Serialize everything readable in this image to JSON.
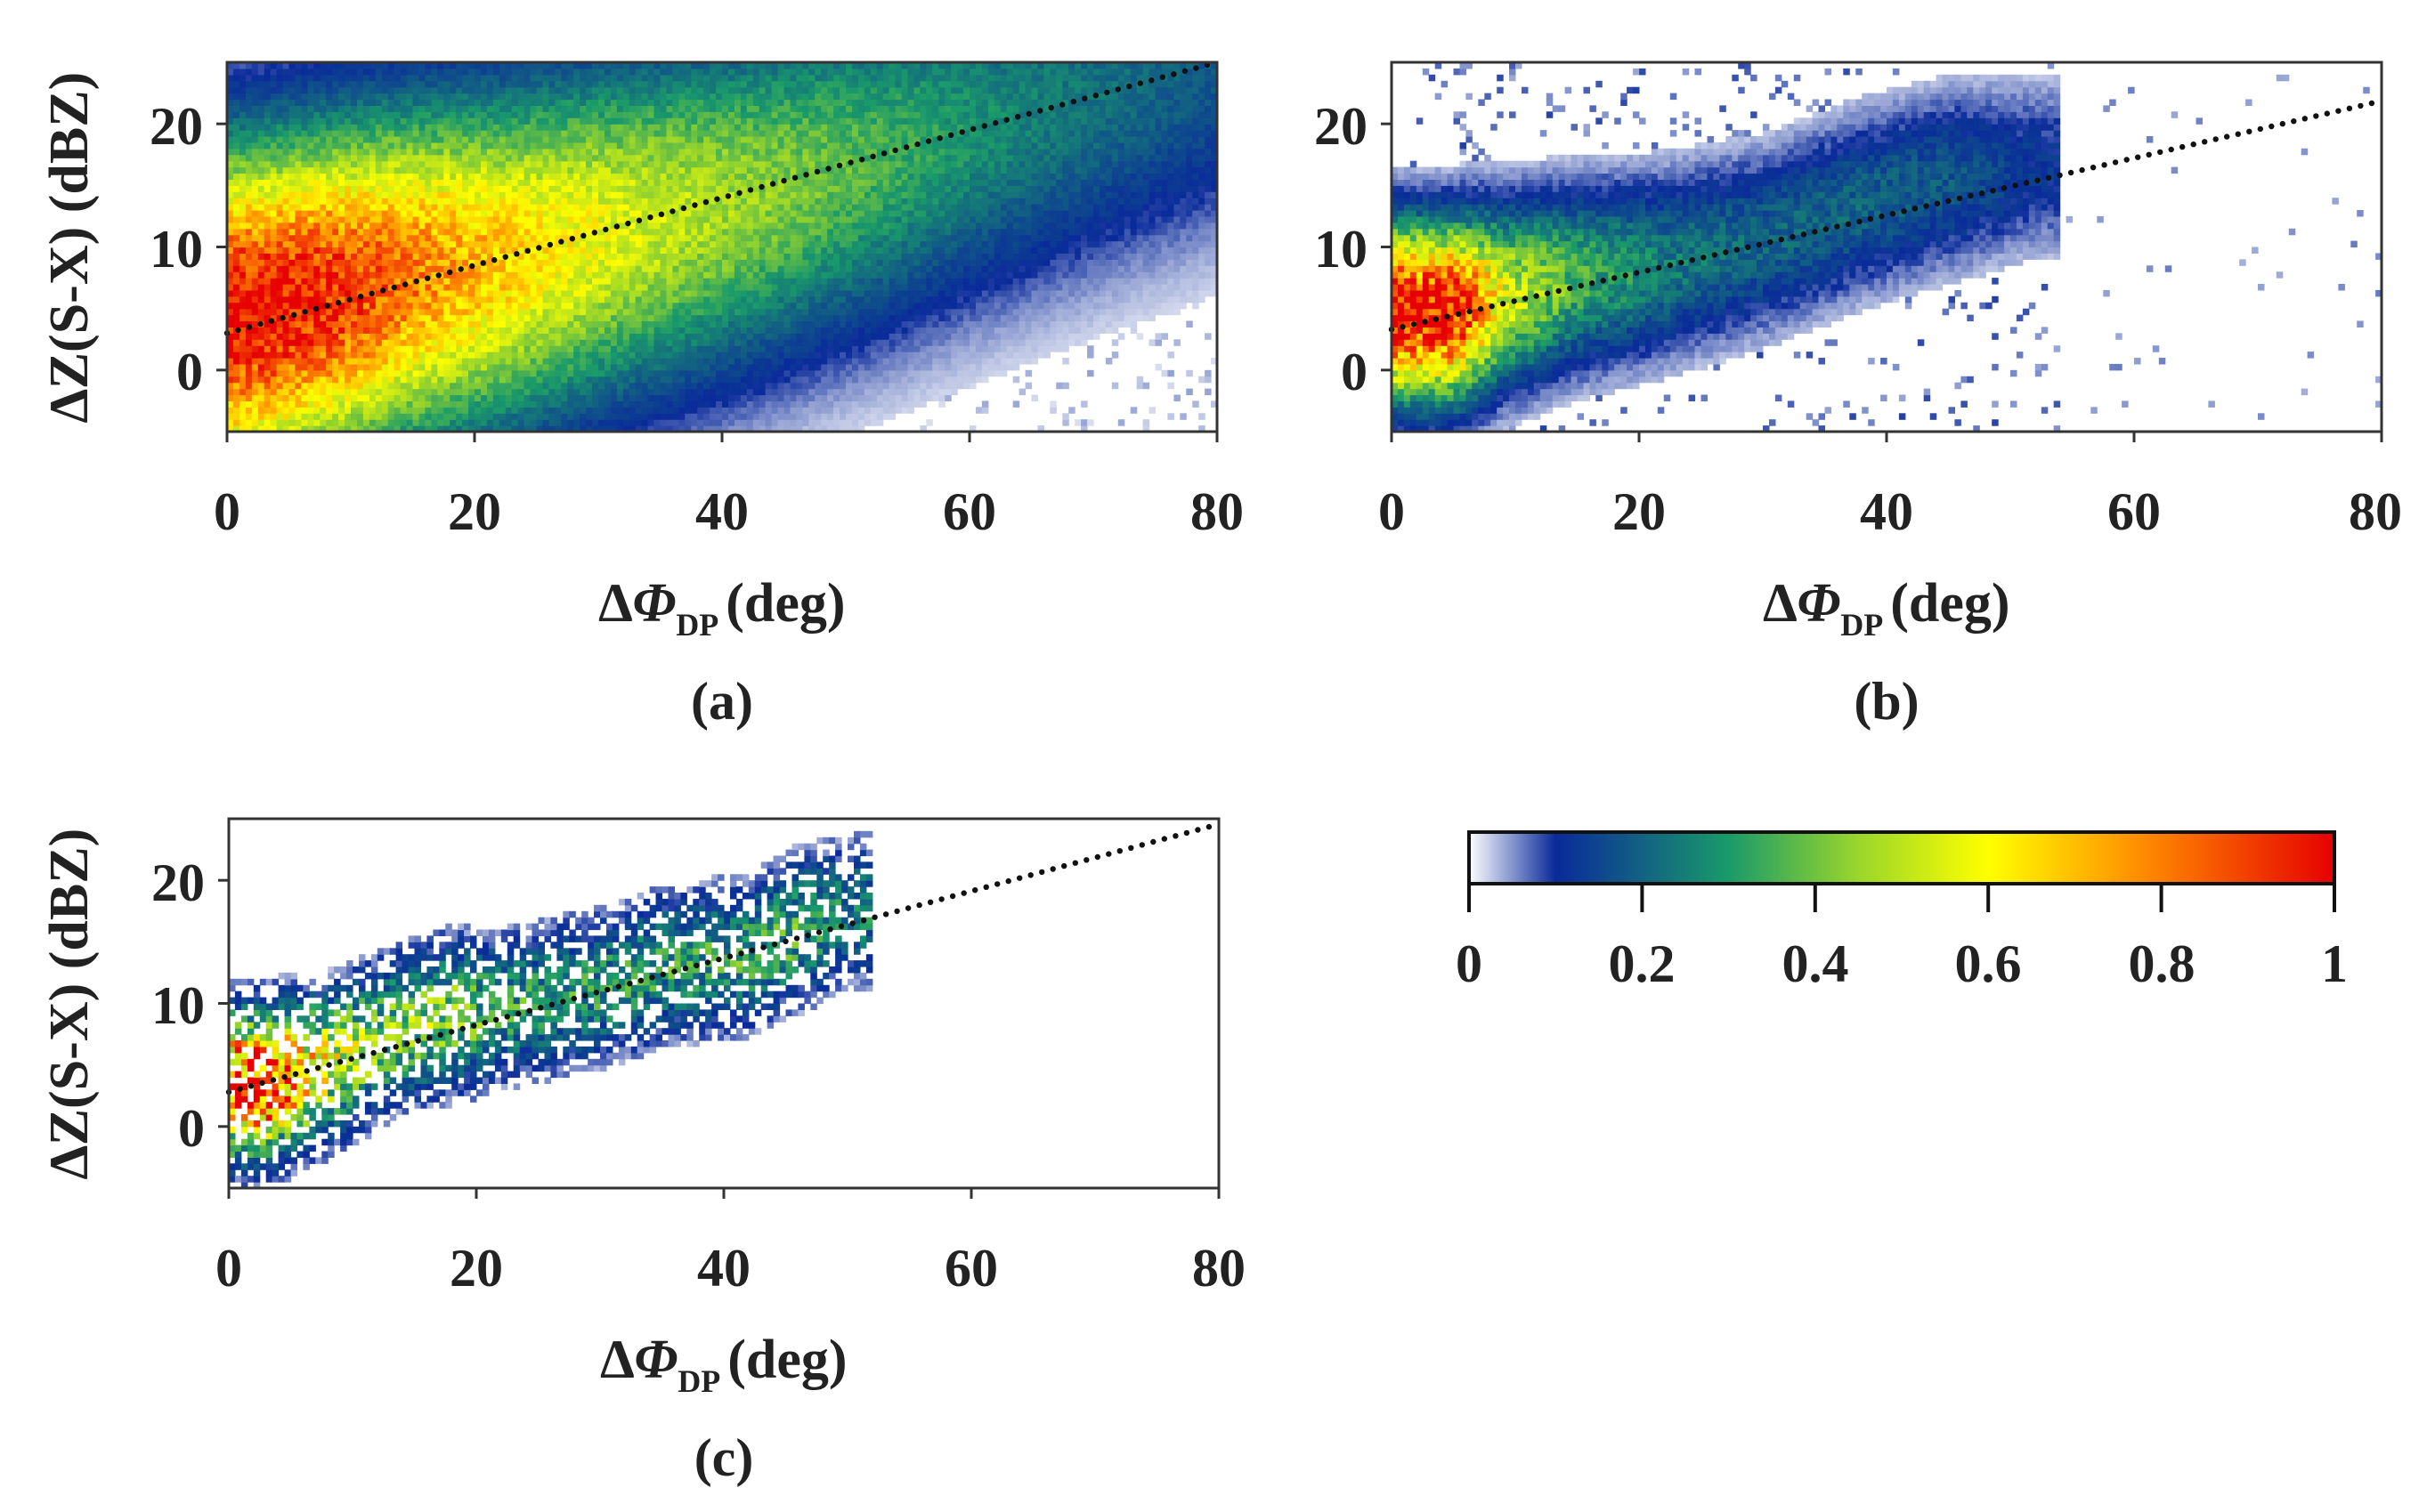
{
  "chart_data": [
    {
      "type": "heatmap",
      "panel_label": "(a)",
      "xlabel_main": "∆Φ",
      "xlabel_sub": "DP",
      "xlabel_unit": "(deg)",
      "ylabel": "∆Z(S-X) (dBZ)",
      "xlim": [
        0,
        80
      ],
      "ylim": [
        -5,
        25
      ],
      "xticks": [
        "0",
        "20",
        "40",
        "60",
        "80"
      ],
      "yticks": [
        "0",
        "10",
        "20"
      ],
      "fit_line": {
        "intercept": 3.0,
        "slope": 0.275
      },
      "density": {
        "core": [
          [
            1,
            4.5,
            1.0
          ],
          [
            8,
            6.0,
            0.95
          ],
          [
            14,
            7.5,
            0.82
          ],
          [
            22,
            9.0,
            0.68
          ],
          [
            32,
            11.5,
            0.55
          ],
          [
            42,
            14.0,
            0.45
          ],
          [
            52,
            17.0,
            0.36
          ],
          [
            62,
            20.0,
            0.27
          ],
          [
            72,
            23.0,
            0.22
          ],
          [
            80,
            25.0,
            0.18
          ]
        ],
        "spread": "wide"
      }
    },
    {
      "type": "heatmap",
      "panel_label": "(b)",
      "xlabel_main": "∆Φ",
      "xlabel_sub": "DP",
      "xlabel_unit": "(deg)",
      "ylabel": "",
      "xlim": [
        0,
        80
      ],
      "ylim": [
        -5,
        25
      ],
      "xticks": [
        "0",
        "20",
        "40",
        "60",
        "80"
      ],
      "yticks": [
        "0",
        "10",
        "20"
      ],
      "fit_line": {
        "intercept": 3.3,
        "slope": 0.232
      },
      "density": {
        "core": [
          [
            5,
            4.8,
            1.0
          ],
          [
            9,
            6.0,
            0.55
          ],
          [
            15,
            7.5,
            0.35
          ],
          [
            22,
            8.5,
            0.25
          ],
          [
            30,
            10.5,
            0.2
          ],
          [
            38,
            13.5,
            0.2
          ],
          [
            45,
            15.5,
            0.18
          ],
          [
            52,
            16.5,
            0.12
          ]
        ],
        "spread": "medium"
      }
    },
    {
      "type": "heatmap",
      "panel_label": "(c)",
      "xlabel_main": "∆Φ",
      "xlabel_sub": "DP",
      "xlabel_unit": "(deg)",
      "ylabel": "∆Z(S-X) (dBZ)",
      "xlim": [
        0,
        80
      ],
      "ylim": [
        -5,
        25
      ],
      "xticks": [
        "0",
        "20",
        "40",
        "60",
        "80"
      ],
      "yticks": [
        "0",
        "10",
        "20"
      ],
      "fit_line": {
        "intercept": 2.8,
        "slope": 0.272
      },
      "density": {
        "core": [
          [
            3,
            3.5,
            1.0
          ],
          [
            8,
            5.0,
            0.55
          ],
          [
            14,
            8.0,
            0.4
          ],
          [
            18,
            9.0,
            0.45
          ],
          [
            22,
            9.5,
            0.3
          ],
          [
            31,
            11.5,
            0.3
          ],
          [
            35,
            13.0,
            0.3
          ],
          [
            42,
            14.0,
            0.32
          ],
          [
            46,
            16.0,
            0.35
          ],
          [
            50,
            17.5,
            0.25
          ]
        ],
        "spread": "narrow"
      }
    }
  ],
  "colorbar": {
    "ticks": [
      "0",
      "0.2",
      "0.4",
      "0.6",
      "0.8",
      "1"
    ],
    "values": [
      0,
      0.2,
      0.4,
      0.6,
      0.8,
      1
    ],
    "colors": [
      "#ffffff",
      "#0a2a9a",
      "#1a9a6a",
      "#9ad62a",
      "#ffff00",
      "#ff8a00",
      "#e60000"
    ]
  }
}
